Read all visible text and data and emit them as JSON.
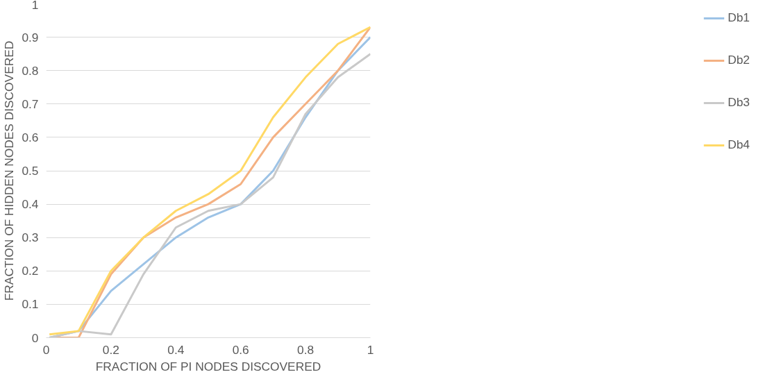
{
  "chart_data": {
    "type": "line",
    "xlabel": "FRACTION OF PI NODES DISCOVERED",
    "ylabel": "FRACTION OF HIDDEN NODES DISCOVERED",
    "x": [
      0.01,
      0.1,
      0.2,
      0.3,
      0.4,
      0.5,
      0.6,
      0.7,
      0.8,
      0.9,
      1
    ],
    "series": [
      {
        "name": "Db1",
        "color": "#9dc3e6",
        "values": [
          0,
          0.02,
          0.14,
          0.22,
          0.3,
          0.36,
          0.4,
          0.5,
          0.66,
          0.8,
          0.9
        ]
      },
      {
        "name": "Db2",
        "color": "#f4b183",
        "values": [
          0,
          0,
          0.19,
          0.3,
          0.36,
          0.4,
          0.46,
          0.6,
          0.7,
          0.8,
          0.93
        ]
      },
      {
        "name": "Db3",
        "color": "#c9c9c9",
        "values": [
          0,
          0.02,
          0.01,
          0.19,
          0.33,
          0.38,
          0.4,
          0.48,
          0.67,
          0.78,
          0.85
        ]
      },
      {
        "name": "Db4",
        "color": "#ffd966",
        "values": [
          0.01,
          0.02,
          0.2,
          0.3,
          0.38,
          0.43,
          0.5,
          0.66,
          0.78,
          0.88,
          0.93
        ]
      }
    ],
    "xlim": [
      0,
      1
    ],
    "xticks": [
      0,
      0.2,
      0.4,
      0.6,
      0.8,
      1
    ],
    "ylim": [
      0,
      1
    ],
    "yticks": [
      0,
      0.1,
      0.2,
      0.3,
      0.4,
      0.5,
      0.6,
      0.7,
      0.8,
      0.9,
      1
    ],
    "grid": "y",
    "legend": "right",
    "marker": "none",
    "line_style": "solid"
  }
}
